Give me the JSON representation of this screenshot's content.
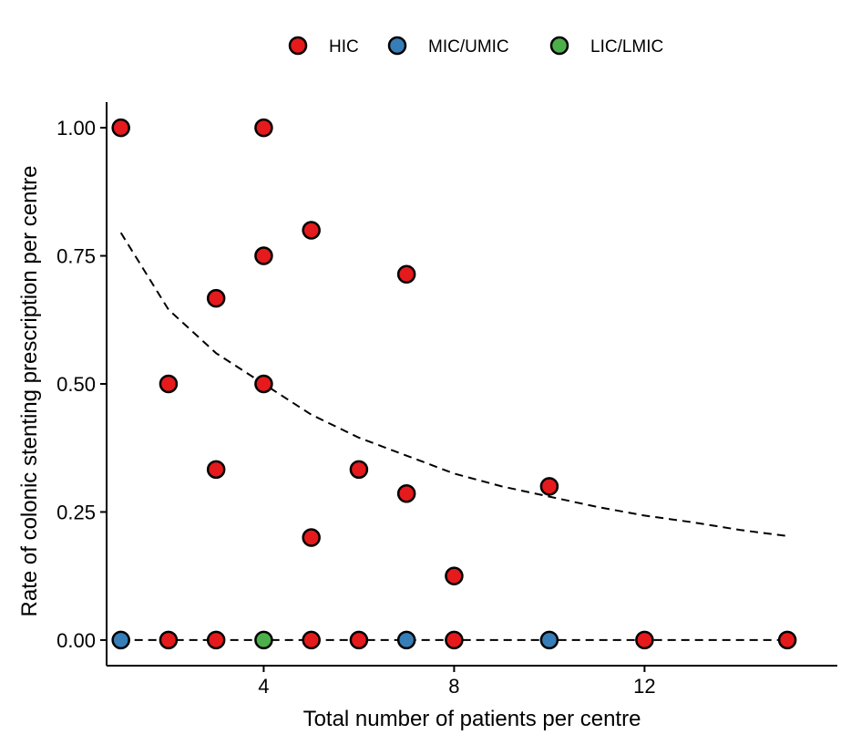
{
  "chart_data": {
    "type": "scatter",
    "xlabel": "Total number of patients per centre",
    "ylabel": "Rate of colonic stenting prescription per centre",
    "xlim": [
      0.7,
      16.05
    ],
    "ylim": [
      -0.05,
      1.05
    ],
    "x_ticks": [
      4,
      8,
      12
    ],
    "y_ticks": [
      0.0,
      0.25,
      0.5,
      0.75,
      1.0
    ],
    "y_tick_labels": [
      "0.00",
      "0.25",
      "0.50",
      "0.75",
      "1.00"
    ],
    "grid": false,
    "legend_position": "top",
    "series": [
      {
        "name": "HIC",
        "color": "#e41a1c",
        "points": [
          {
            "x": 1,
            "y": 1.0
          },
          {
            "x": 4,
            "y": 1.0
          },
          {
            "x": 5,
            "y": 0.8
          },
          {
            "x": 4,
            "y": 0.75
          },
          {
            "x": 7,
            "y": 0.714
          },
          {
            "x": 3,
            "y": 0.667
          },
          {
            "x": 2,
            "y": 0.5
          },
          {
            "x": 4,
            "y": 0.5
          },
          {
            "x": 3,
            "y": 0.333
          },
          {
            "x": 6,
            "y": 0.333
          },
          {
            "x": 10,
            "y": 0.3
          },
          {
            "x": 7,
            "y": 0.286
          },
          {
            "x": 5,
            "y": 0.2
          },
          {
            "x": 8,
            "y": 0.125
          },
          {
            "x": 2,
            "y": 0.0
          },
          {
            "x": 3,
            "y": 0.0
          },
          {
            "x": 5,
            "y": 0.0
          },
          {
            "x": 6,
            "y": 0.0
          },
          {
            "x": 8,
            "y": 0.0
          },
          {
            "x": 12,
            "y": 0.0
          },
          {
            "x": 15,
            "y": 0.0
          }
        ]
      },
      {
        "name": "MIC/UMIC",
        "color": "#377eb8",
        "points": [
          {
            "x": 1,
            "y": 0.0
          },
          {
            "x": 7,
            "y": 0.0
          },
          {
            "x": 10,
            "y": 0.0
          }
        ]
      },
      {
        "name": "LIC/LMIC",
        "color": "#4daf4a",
        "points": [
          {
            "x": 4,
            "y": 0.0
          }
        ]
      }
    ],
    "trend_lines": [
      {
        "style": "dashed",
        "x": [
          1,
          2,
          3,
          4,
          5,
          6,
          7,
          8,
          9,
          10,
          11,
          12,
          13,
          14,
          15
        ],
        "y": [
          0.795,
          0.645,
          0.56,
          0.5,
          0.44,
          0.395,
          0.36,
          0.325,
          0.3,
          0.28,
          0.26,
          0.243,
          0.23,
          0.215,
          0.203
        ]
      },
      {
        "style": "dashed",
        "x": [
          1,
          15
        ],
        "y": [
          0.0,
          0.0
        ]
      }
    ]
  }
}
